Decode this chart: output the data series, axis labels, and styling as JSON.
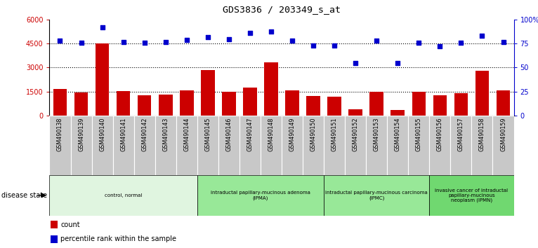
{
  "title": "GDS3836 / 203349_s_at",
  "samples": [
    "GSM490138",
    "GSM490139",
    "GSM490140",
    "GSM490141",
    "GSM490142",
    "GSM490143",
    "GSM490144",
    "GSM490145",
    "GSM490146",
    "GSM490147",
    "GSM490148",
    "GSM490149",
    "GSM490150",
    "GSM490151",
    "GSM490152",
    "GSM490153",
    "GSM490154",
    "GSM490155",
    "GSM490156",
    "GSM490157",
    "GSM490158",
    "GSM490159"
  ],
  "counts": [
    1650,
    1430,
    4500,
    1530,
    1280,
    1310,
    1570,
    2850,
    1480,
    1750,
    3350,
    1570,
    1200,
    1150,
    380,
    1500,
    350,
    1500,
    1260,
    1400,
    2800,
    1580
  ],
  "percentile_ranks": [
    78,
    76,
    92,
    77,
    76,
    77,
    79,
    82,
    80,
    86,
    88,
    78,
    73,
    73,
    55,
    78,
    55,
    76,
    72,
    76,
    83,
    77
  ],
  "bar_color": "#cc0000",
  "dot_color": "#0000cc",
  "ylim_left": [
    0,
    6000
  ],
  "ylim_right": [
    0,
    100
  ],
  "yticks_left": [
    0,
    1500,
    3000,
    4500,
    6000
  ],
  "yticks_right": [
    0,
    25,
    50,
    75,
    100
  ],
  "ytick_labels_left": [
    "0",
    "1500",
    "3000",
    "4500",
    "6000"
  ],
  "ytick_labels_right": [
    "0",
    "25",
    "50",
    "75",
    "100%"
  ],
  "grid_values": [
    1500,
    3000,
    4500
  ],
  "disease_groups": [
    {
      "label": "control, normal",
      "start": 0,
      "end": 7,
      "color": "#e0f5e0"
    },
    {
      "label": "intraductal papillary-mucinous adenoma\n(IPMA)",
      "start": 7,
      "end": 13,
      "color": "#98e898"
    },
    {
      "label": "intraductal papillary-mucinous carcinoma\n(IPMC)",
      "start": 13,
      "end": 18,
      "color": "#98e898"
    },
    {
      "label": "invasive cancer of intraductal\npapillary-mucinous\nneoplasm (IPMN)",
      "start": 18,
      "end": 22,
      "color": "#70d870"
    }
  ],
  "sample_box_color": "#c8c8c8",
  "disease_state_label": "disease state",
  "legend_items": [
    {
      "color": "#cc0000",
      "label": "count"
    },
    {
      "color": "#0000cc",
      "label": "percentile rank within the sample"
    }
  ]
}
